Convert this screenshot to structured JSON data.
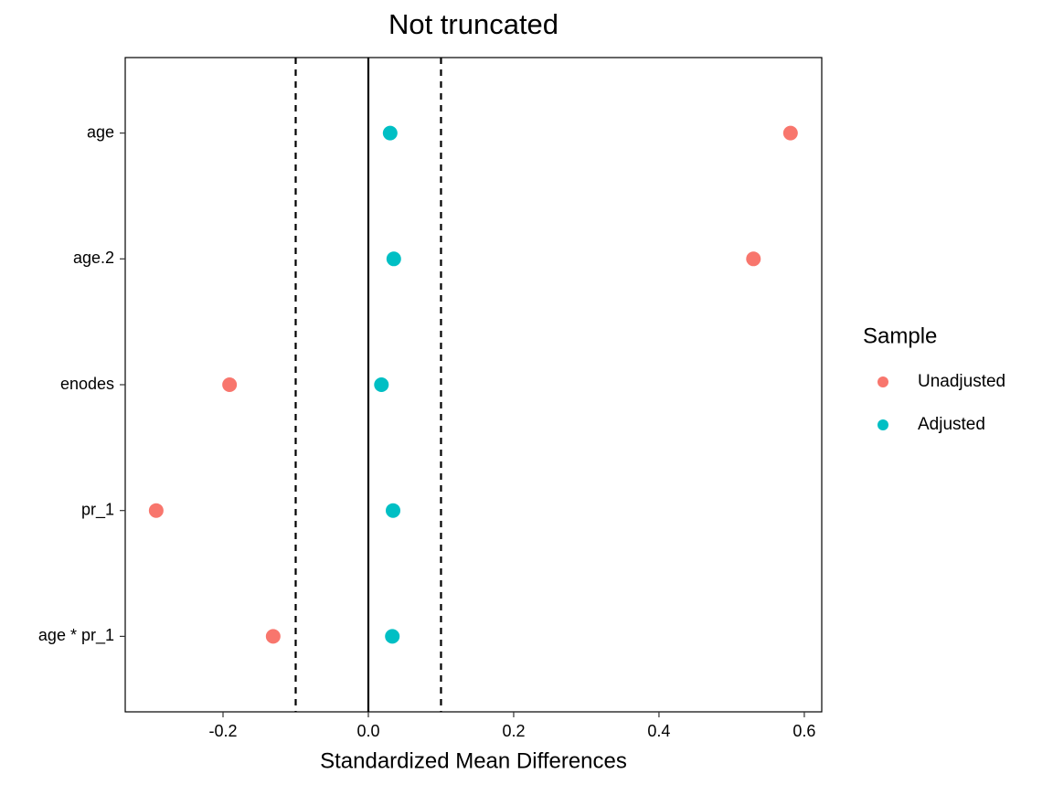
{
  "chart_data": {
    "type": "dot",
    "title": "Not truncated",
    "x_label": "Standardized Mean Differences",
    "categories": [
      "age",
      "age.2",
      "enodes",
      "pr_1",
      "age * pr_1"
    ],
    "series": [
      {
        "name": "Unadjusted",
        "color": "#F8766D",
        "values": [
          0.581,
          0.53,
          -0.191,
          -0.292,
          -0.131
        ]
      },
      {
        "name": "Adjusted",
        "color": "#00BFC4",
        "values": [
          0.03,
          0.035,
          0.018,
          0.034,
          0.033
        ]
      }
    ],
    "xlim": [
      -0.3346,
      0.624
    ],
    "xticks": [
      -0.2,
      {
        "value": 0,
        "label": "0.0"
      },
      0.2,
      0.4,
      0.6
    ],
    "reference_lines": [
      {
        "value": -0.1,
        "style": "dashed"
      },
      {
        "value": 0,
        "style": "solid"
      },
      {
        "value": 0.1,
        "style": "dashed"
      }
    ],
    "legend_title": "Sample",
    "legend_position": "right"
  }
}
